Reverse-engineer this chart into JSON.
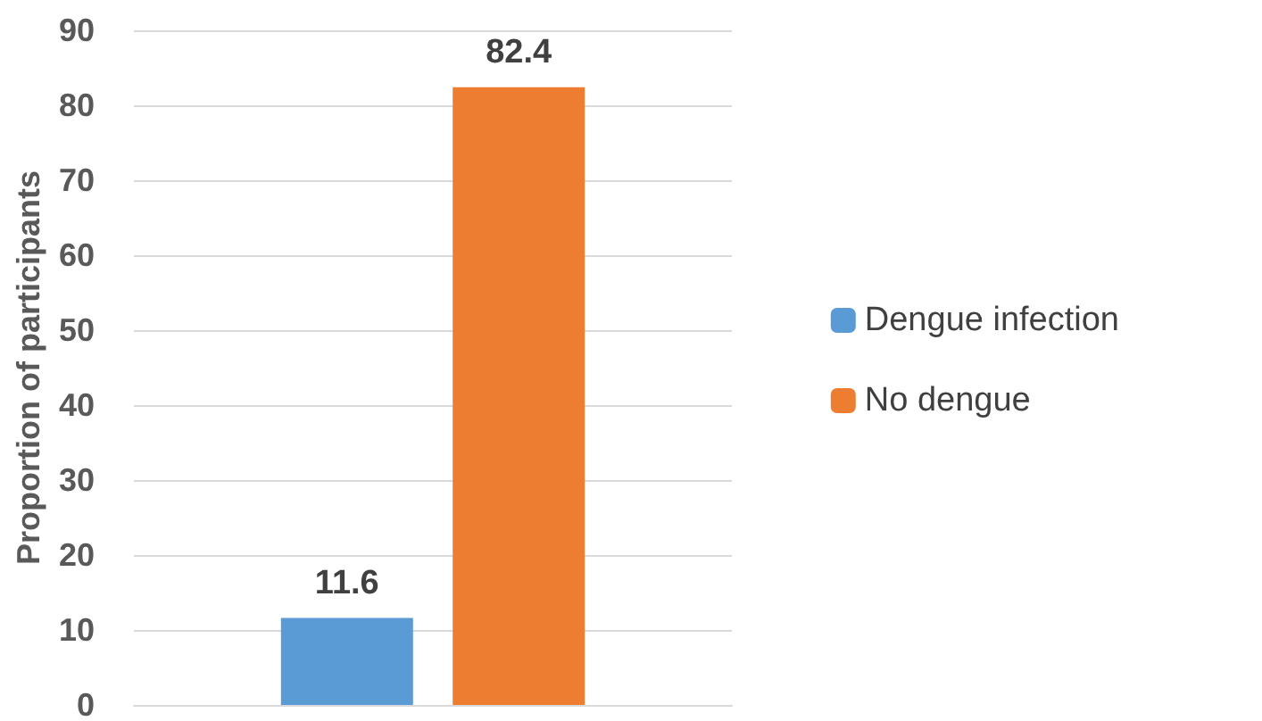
{
  "chart_data": {
    "type": "bar",
    "ylabel": "Proportion of participants",
    "categories": [
      null
    ],
    "series": [
      {
        "name": "Dengue infection",
        "color": "#5b9bd5",
        "values": [
          11.6
        ]
      },
      {
        "name": "No dengue",
        "color": "#ed7d31",
        "values": [
          82.4
        ]
      }
    ],
    "ylim": [
      0,
      90
    ],
    "yticks": [
      0,
      10,
      20,
      30,
      40,
      50,
      60,
      70,
      80,
      90
    ],
    "grid": "y",
    "legend": "right",
    "data_labels": true
  }
}
